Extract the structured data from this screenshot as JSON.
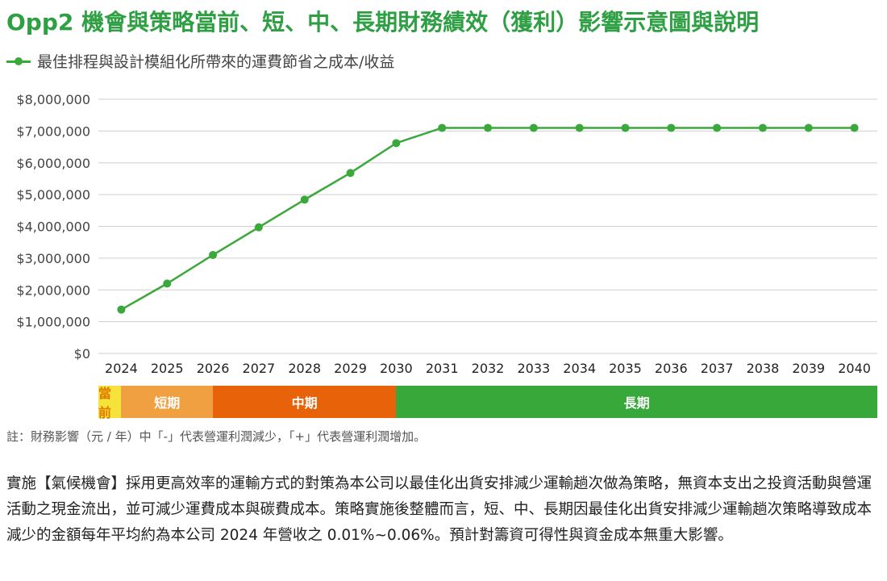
{
  "title": "Opp2 機會與策略當前、短、中、長期財務績效（獲利）影響示意圖與說明",
  "chart_data": {
    "type": "line",
    "title": "Opp2 機會與策略當前、短、中、長期財務績效（獲利）影響示意圖與說明",
    "xlabel": "",
    "ylabel": "",
    "categories": [
      "2024",
      "2025",
      "2026",
      "2027",
      "2028",
      "2029",
      "2030",
      "2031",
      "2032",
      "2033",
      "2034",
      "2035",
      "2036",
      "2037",
      "2038",
      "2039",
      "2040"
    ],
    "series": [
      {
        "name": "最佳排程與設計模組化所帶來的運費節省之成本/收益",
        "color": "#3aa83a",
        "values": [
          1380000,
          2200000,
          3100000,
          3970000,
          4840000,
          5680000,
          6620000,
          7100000,
          7100000,
          7100000,
          7100000,
          7100000,
          7100000,
          7100000,
          7100000,
          7100000,
          7100000
        ]
      }
    ],
    "ylim": [
      0,
      8000000
    ],
    "yticks": [
      0,
      1000000,
      2000000,
      3000000,
      4000000,
      5000000,
      6000000,
      7000000,
      8000000
    ],
    "ytick_labels": [
      "$0",
      "$1,000,000",
      "$2,000,000",
      "$3,000,000",
      "$4,000,000",
      "$5,000,000",
      "$6,000,000",
      "$7,000,000",
      "$8,000,000"
    ],
    "grid": true,
    "legend_position": "top-left"
  },
  "phases": [
    {
      "label": "當前",
      "color": "#f5e33a",
      "text_color": "#e07a00",
      "span": 0.5
    },
    {
      "label": "短期",
      "color": "#f0a040",
      "text_color": "#ffffff",
      "span": 2
    },
    {
      "label": "中期",
      "color": "#e8620a",
      "text_color": "#ffffff",
      "span": 4
    },
    {
      "label": "長期",
      "color": "#39a83a",
      "text_color": "#ffffff",
      "span": 10.5
    }
  ],
  "note": "註：財務影響（元 / 年）中「-」代表營運利潤減少，「+」代表營運利潤增加。",
  "body_text": "實施【氣候機會】採用更高效率的運輸方式的對策為本公司以最佳化出貨安排減少運輸趟次做為策略，無資本支出之投資活動與營運活動之現金流出，並可減少運費成本與碳費成本。策略實施後整體而言，短、中、長期因最佳化出貨安排減少運輸趟次策略導致成本減少的金額每年平均約為本公司 2024 年營收之 0.01%~0.06%。預計對籌資可得性與資金成本無重大影響。"
}
